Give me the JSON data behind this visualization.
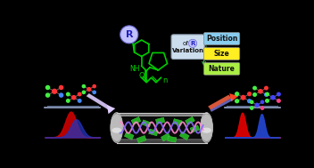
{
  "bg_color": "#000000",
  "left_peak_color1": "#cc0000",
  "left_peak_color2": "#2233bb",
  "right_peak1_color": "#dd0000",
  "right_peak2_color": "#2244cc",
  "col_body_color": "#555555",
  "col_highlight": "#cccccc",
  "col_dark": "#222222",
  "arrow_left_color1": "#ffaaff",
  "arrow_left_color2": "#aaaaff",
  "arrow_right_color1": "#ff4422",
  "arrow_right_color2": "#ff88ff",
  "molecule_color": "#00cc00",
  "labels": [
    "Nature",
    "Size",
    "Position"
  ],
  "label_colors": [
    "#aaee44",
    "#ffee22",
    "#88ccee"
  ],
  "var_box_color": "#ccddee",
  "var_box_edge": "#8899aa"
}
